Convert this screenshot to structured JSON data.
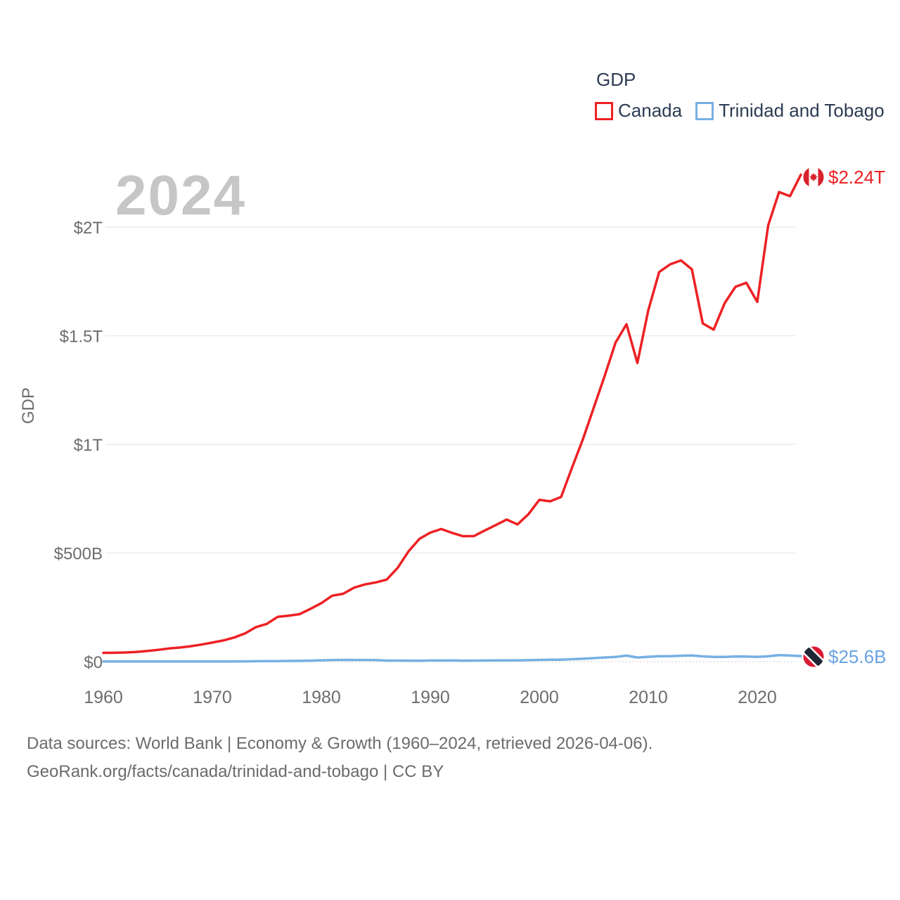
{
  "legend": {
    "title": "GDP",
    "items": [
      {
        "label": "Canada",
        "color": "#ed2124"
      },
      {
        "label": "Trinidad and Tobago",
        "color": "#77b0e4"
      }
    ]
  },
  "chart": {
    "year_watermark": "2024",
    "y_axis_title": "GDP",
    "y_ticks": [
      "$0",
      "$500B",
      "$1T",
      "$1.5T",
      "$2T"
    ],
    "x_ticks": [
      "1960",
      "1970",
      "1980",
      "1990",
      "2000",
      "2010",
      "2020"
    ],
    "end_labels": {
      "canada": {
        "value": "$2.24T",
        "color": "#ed2124",
        "flag_icon": "canada-flag"
      },
      "trinidad_and_tobago": {
        "value": "$25.6B",
        "color": "#6ba3e0",
        "flag_icon": "trinidad-and-tobago-flag"
      }
    }
  },
  "chart_data": {
    "type": "line",
    "title": "GDP",
    "ylabel": "GDP",
    "unit": "billions of current US$",
    "xlim": [
      1960,
      2024
    ],
    "ylim_billions": [
      0,
      2400
    ],
    "grid": "horizontal",
    "legend_position": "top-right",
    "x": [
      1960,
      1961,
      1962,
      1963,
      1964,
      1965,
      1966,
      1967,
      1968,
      1969,
      1970,
      1971,
      1972,
      1973,
      1974,
      1975,
      1976,
      1977,
      1978,
      1979,
      1980,
      1981,
      1982,
      1983,
      1984,
      1985,
      1986,
      1987,
      1988,
      1989,
      1990,
      1991,
      1992,
      1993,
      1994,
      1995,
      1996,
      1997,
      1998,
      1999,
      2000,
      2001,
      2002,
      2003,
      2004,
      2005,
      2006,
      2007,
      2008,
      2009,
      2010,
      2011,
      2012,
      2013,
      2014,
      2015,
      2016,
      2017,
      2018,
      2019,
      2020,
      2021,
      2022,
      2023,
      2024
    ],
    "series": [
      {
        "name": "Canada",
        "color": "#ed2124",
        "end_value_label": "$2.24T",
        "values": [
          40.5,
          40.9,
          42.2,
          44.7,
          48.8,
          53.9,
          60.4,
          64.8,
          70.8,
          78.5,
          87.8,
          97.5,
          110.9,
          129.7,
          158.9,
          173.8,
          206.6,
          211.6,
          218.6,
          243.1,
          269.3,
          303.5,
          312.4,
          340.6,
          355.4,
          364.8,
          377.7,
          431.3,
          507.4,
          565.1,
          593.9,
          610.3,
          592.4,
          577.2,
          578.1,
          604.0,
          628.5,
          654.0,
          631.8,
          678.4,
          744.8,
          738.0,
          758.0,
          892.4,
          1023.2,
          1169.4,
          1315.4,
          1468.8,
          1553.0,
          1374.6,
          1617.3,
          1793.3,
          1828.4,
          1846.6,
          1805.8,
          1556.5,
          1528.0,
          1649.3,
          1725.3,
          1743.7,
          1655.7,
          2007.5,
          2161.5,
          2142.5,
          2241.2
        ]
      },
      {
        "name": "Trinidad and Tobago",
        "color": "#77b0e4",
        "end_value_label": "$25.6B",
        "values": [
          0.5,
          0.6,
          0.6,
          0.7,
          0.7,
          0.7,
          0.7,
          0.8,
          0.8,
          0.8,
          0.8,
          0.9,
          1.0,
          1.3,
          1.8,
          2.4,
          2.5,
          3.1,
          3.6,
          4.6,
          6.2,
          7.0,
          8.1,
          7.8,
          7.8,
          7.4,
          4.8,
          4.8,
          4.5,
          4.3,
          5.1,
          5.3,
          5.4,
          4.6,
          5.0,
          5.3,
          5.8,
          5.7,
          6.0,
          6.8,
          8.2,
          8.8,
          9.0,
          11.3,
          13.3,
          16.2,
          19.1,
          21.6,
          27.9,
          19.2,
          22.2,
          25.4,
          25.2,
          27.3,
          28.1,
          24.3,
          21.6,
          22.1,
          23.8,
          23.2,
          21.6,
          24.5,
          30.1,
          28.1,
          25.6
        ]
      }
    ]
  },
  "footer": {
    "line1": "Data sources: World Bank | Economy & Growth (1960–2024, retrieved 2026-04-06).",
    "line2": "GeoRank.org/facts/canada/trinidad-and-tobago | CC BY"
  }
}
